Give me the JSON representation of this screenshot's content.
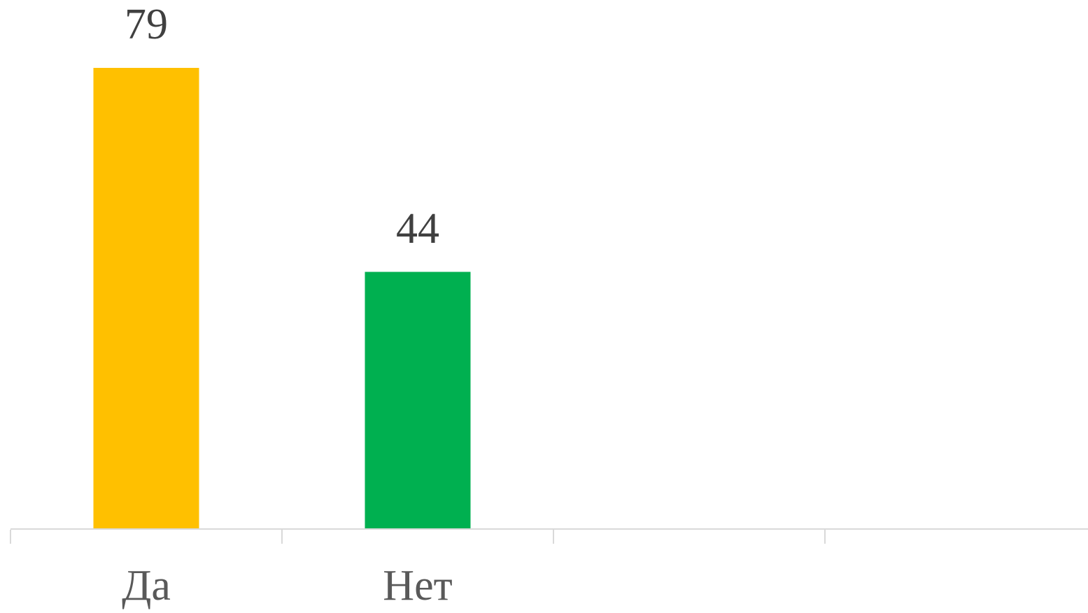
{
  "chart_data": {
    "type": "bar",
    "categories": [
      "Да",
      "Нет",
      null,
      null
    ],
    "values": [
      79,
      44,
      null,
      null
    ],
    "colors": [
      "#ffc000",
      "#00b050",
      null,
      null
    ]
  }
}
